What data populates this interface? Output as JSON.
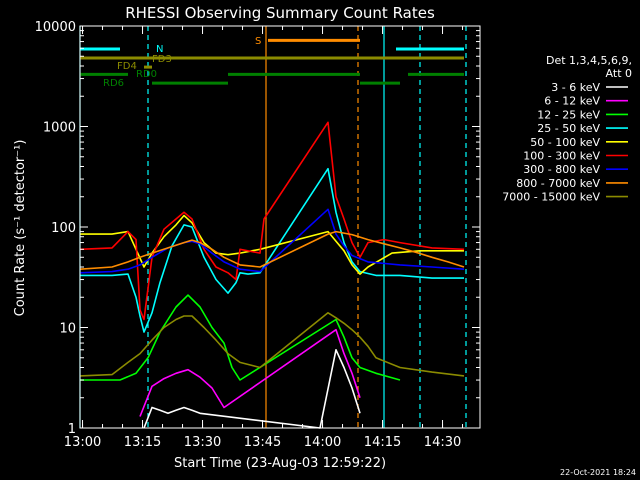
{
  "chart_data": {
    "type": "line",
    "title": "RHESSI Observing Summary Count Rates",
    "xlabel": "Start Time (23-Aug-03 12:59:22)",
    "ylabel": "Count Rate (s⁻¹ detector⁻¹)",
    "yscale": "log",
    "ylim": [
      1,
      10000
    ],
    "xlim_minutes": [
      0,
      100
    ],
    "x_tick_labels": [
      "13:00",
      "13:15",
      "13:30",
      "13:45",
      "14:00",
      "14:15",
      "14:30"
    ],
    "y_tick_labels": [
      "1",
      "10",
      "100",
      "1000",
      "10000"
    ],
    "footer_date": "22-Oct-2021 18:24",
    "legend_header": [
      "Det 1,3,4,5,6,9,",
      "Att 0"
    ],
    "series": [
      {
        "name": "3 - 6 keV",
        "color": "#ffffff",
        "points": [
          [
            16,
            1
          ],
          [
            18,
            1.6
          ],
          [
            20,
            1.5
          ],
          [
            22,
            1.4
          ],
          [
            24,
            1.5
          ],
          [
            26,
            1.6
          ],
          [
            28,
            1.5
          ],
          [
            30,
            1.4
          ],
          [
            60,
            1
          ],
          [
            64,
            6
          ],
          [
            66,
            4
          ],
          [
            68,
            2.5
          ],
          [
            70,
            1.4
          ]
        ]
      },
      {
        "name": "6 - 12 keV",
        "color": "#ff00ff",
        "points": [
          [
            15,
            1.3
          ],
          [
            18,
            2.6
          ],
          [
            21,
            3.1
          ],
          [
            24,
            3.5
          ],
          [
            27,
            3.8
          ],
          [
            30,
            3.2
          ],
          [
            33,
            2.5
          ],
          [
            36,
            1.6
          ],
          [
            64,
            9.5
          ],
          [
            66,
            5.5
          ],
          [
            68,
            3.5
          ],
          [
            70,
            2
          ]
        ]
      },
      {
        "name": "12 - 25 keV",
        "color": "#00ff00",
        "points": [
          [
            0,
            3
          ],
          [
            10,
            3
          ],
          [
            14,
            3.5
          ],
          [
            17,
            5
          ],
          [
            20,
            9
          ],
          [
            24,
            16
          ],
          [
            27,
            21
          ],
          [
            30,
            16
          ],
          [
            33,
            10
          ],
          [
            36,
            7
          ],
          [
            38,
            4
          ],
          [
            40,
            3
          ],
          [
            64,
            12
          ],
          [
            66,
            8
          ],
          [
            68,
            5
          ],
          [
            70,
            4
          ],
          [
            74,
            3.5
          ],
          [
            80,
            3
          ]
        ]
      },
      {
        "name": "25 - 50 keV",
        "color": "#00ffff",
        "points": [
          [
            0,
            33
          ],
          [
            8,
            33
          ],
          [
            12,
            34
          ],
          [
            14,
            20
          ],
          [
            15,
            13
          ],
          [
            16,
            9
          ],
          [
            18,
            14
          ],
          [
            20,
            28
          ],
          [
            23,
            65
          ],
          [
            26,
            105
          ],
          [
            28,
            100
          ],
          [
            31,
            50
          ],
          [
            34,
            30
          ],
          [
            37,
            22
          ],
          [
            39,
            28
          ],
          [
            40,
            35
          ],
          [
            42,
            34
          ],
          [
            45,
            35
          ],
          [
            62,
            380
          ],
          [
            64,
            140
          ],
          [
            66,
            70
          ],
          [
            68,
            45
          ],
          [
            70,
            36
          ],
          [
            74,
            33
          ],
          [
            80,
            33
          ],
          [
            88,
            31
          ],
          [
            96,
            31
          ]
        ]
      },
      {
        "name": "50 - 100 keV",
        "color": "#ffff00",
        "points": [
          [
            0,
            85
          ],
          [
            8,
            85
          ],
          [
            12,
            90
          ],
          [
            14,
            60
          ],
          [
            16,
            40
          ],
          [
            18,
            55
          ],
          [
            21,
            80
          ],
          [
            24,
            105
          ],
          [
            26,
            130
          ],
          [
            28,
            110
          ],
          [
            31,
            70
          ],
          [
            34,
            55
          ],
          [
            37,
            53
          ],
          [
            40,
            55
          ],
          [
            45,
            60
          ],
          [
            62,
            90
          ],
          [
            64,
            72
          ],
          [
            66,
            58
          ],
          [
            68,
            42
          ],
          [
            70,
            34
          ],
          [
            72,
            40
          ],
          [
            78,
            55
          ],
          [
            85,
            58
          ],
          [
            92,
            58
          ],
          [
            96,
            58
          ]
        ]
      },
      {
        "name": "100 - 300 keV",
        "color": "#ff0000",
        "points": [
          [
            0,
            60
          ],
          [
            8,
            62
          ],
          [
            12,
            90
          ],
          [
            14,
            75
          ],
          [
            15,
            15
          ],
          [
            16,
            12
          ],
          [
            18,
            50
          ],
          [
            21,
            95
          ],
          [
            24,
            120
          ],
          [
            26,
            140
          ],
          [
            28,
            120
          ],
          [
            31,
            60
          ],
          [
            34,
            40
          ],
          [
            37,
            35
          ],
          [
            39,
            30
          ],
          [
            40,
            60
          ],
          [
            45,
            55
          ],
          [
            46,
            120
          ],
          [
            62,
            1100
          ],
          [
            64,
            200
          ],
          [
            66,
            120
          ],
          [
            68,
            70
          ],
          [
            70,
            50
          ],
          [
            72,
            70
          ],
          [
            76,
            75
          ],
          [
            80,
            70
          ],
          [
            88,
            62
          ],
          [
            96,
            60
          ]
        ]
      },
      {
        "name": "300 - 800 keV",
        "color": "#0000ff",
        "points": [
          [
            0,
            35
          ],
          [
            8,
            36
          ],
          [
            12,
            38
          ],
          [
            15,
            42
          ],
          [
            18,
            50
          ],
          [
            22,
            62
          ],
          [
            26,
            70
          ],
          [
            28,
            72
          ],
          [
            30,
            68
          ],
          [
            33,
            55
          ],
          [
            36,
            45
          ],
          [
            40,
            38
          ],
          [
            45,
            36
          ],
          [
            62,
            150
          ],
          [
            64,
            85
          ],
          [
            66,
            65
          ],
          [
            68,
            52
          ],
          [
            72,
            45
          ],
          [
            80,
            42
          ],
          [
            88,
            40
          ],
          [
            96,
            38
          ]
        ]
      },
      {
        "name": "800 - 7000 keV",
        "color": "#ff8c00",
        "points": [
          [
            0,
            38
          ],
          [
            8,
            40
          ],
          [
            12,
            45
          ],
          [
            15,
            50
          ],
          [
            18,
            55
          ],
          [
            22,
            62
          ],
          [
            26,
            70
          ],
          [
            28,
            74
          ],
          [
            30,
            70
          ],
          [
            33,
            60
          ],
          [
            36,
            50
          ],
          [
            40,
            42
          ],
          [
            45,
            40
          ],
          [
            62,
            85
          ],
          [
            64,
            90
          ],
          [
            68,
            84
          ],
          [
            72,
            75
          ],
          [
            76,
            68
          ],
          [
            80,
            62
          ],
          [
            84,
            56
          ],
          [
            88,
            50
          ],
          [
            92,
            45
          ],
          [
            96,
            40
          ]
        ]
      },
      {
        "name": "7000 - 15000 keV",
        "color": "#8b8b00",
        "points": [
          [
            0,
            3.3
          ],
          [
            8,
            3.4
          ],
          [
            12,
            4.5
          ],
          [
            15,
            5.5
          ],
          [
            18,
            7.5
          ],
          [
            21,
            10
          ],
          [
            24,
            12
          ],
          [
            26,
            13
          ],
          [
            28,
            13
          ],
          [
            31,
            10
          ],
          [
            34,
            7.5
          ],
          [
            37,
            5.5
          ],
          [
            40,
            4.5
          ],
          [
            45,
            4
          ],
          [
            62,
            14
          ],
          [
            64,
            12.5
          ],
          [
            66,
            11
          ],
          [
            68,
            9.5
          ],
          [
            70,
            8
          ],
          [
            72,
            6.5
          ],
          [
            74,
            5
          ],
          [
            80,
            4
          ],
          [
            88,
            3.6
          ],
          [
            96,
            3.3
          ]
        ]
      }
    ],
    "flags": [
      {
        "label": "N",
        "color": "#00ffff",
        "segments": [
          [
            0,
            10
          ],
          [
            79,
            96
          ]
        ],
        "level": 5900
      },
      {
        "label": "S",
        "color": "#ff8c00",
        "segments": [
          [
            47,
            70
          ]
        ],
        "level": 7200
      },
      {
        "label": "FD3",
        "color": "#8b8b00",
        "segments": [
          [
            0,
            96
          ]
        ],
        "level": 4800
      },
      {
        "label": "FD4",
        "color": "#8b8b00",
        "segments": [
          [
            16,
            18
          ]
        ],
        "level": 3900
      },
      {
        "label": "RD0",
        "color": "#008000",
        "segments": [
          [
            0,
            12
          ],
          [
            37,
            70
          ],
          [
            82,
            96
          ]
        ],
        "level": 3300
      },
      {
        "label": "RD6",
        "color": "#008000",
        "segments": [
          [
            18,
            37
          ],
          [
            70,
            80
          ]
        ],
        "level": 2700
      }
    ],
    "vlines": [
      {
        "x": 0,
        "color": "#00ffff",
        "style": "solid"
      },
      {
        "x": 17,
        "color": "#00ffff",
        "style": "dashed"
      },
      {
        "x": 46.5,
        "color": "#ff8c00",
        "style": "solid"
      },
      {
        "x": 69.5,
        "color": "#ff8c00",
        "style": "dashed"
      },
      {
        "x": 76,
        "color": "#00ffff",
        "style": "solid"
      },
      {
        "x": 85,
        "color": "#00ffff",
        "style": "dashed"
      },
      {
        "x": 96.5,
        "color": "#00ffff",
        "style": "dashed"
      }
    ]
  }
}
